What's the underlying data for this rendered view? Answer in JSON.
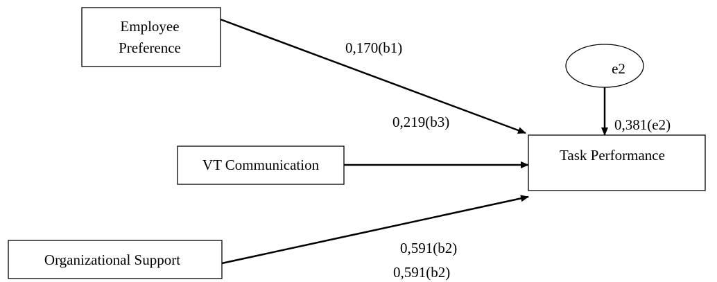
{
  "nodes": {
    "employee_preference": {
      "line1": "Employee",
      "line2": "Preference"
    },
    "vt_communication": {
      "label": "VT Communication"
    },
    "organizational_support": {
      "label": "Organizational Support"
    },
    "task_performance": {
      "label": "Task Performance"
    },
    "error_term": {
      "label": "e2"
    }
  },
  "coefficients": {
    "b1": "0,170(b1)",
    "b3": "0,219(b3)",
    "b2": "0,591(b2)",
    "b2_duplicate": "0,591(b2)",
    "e2": "0,381(e2)"
  },
  "colors": {
    "stroke": "#000000",
    "background": "#ffffff"
  }
}
